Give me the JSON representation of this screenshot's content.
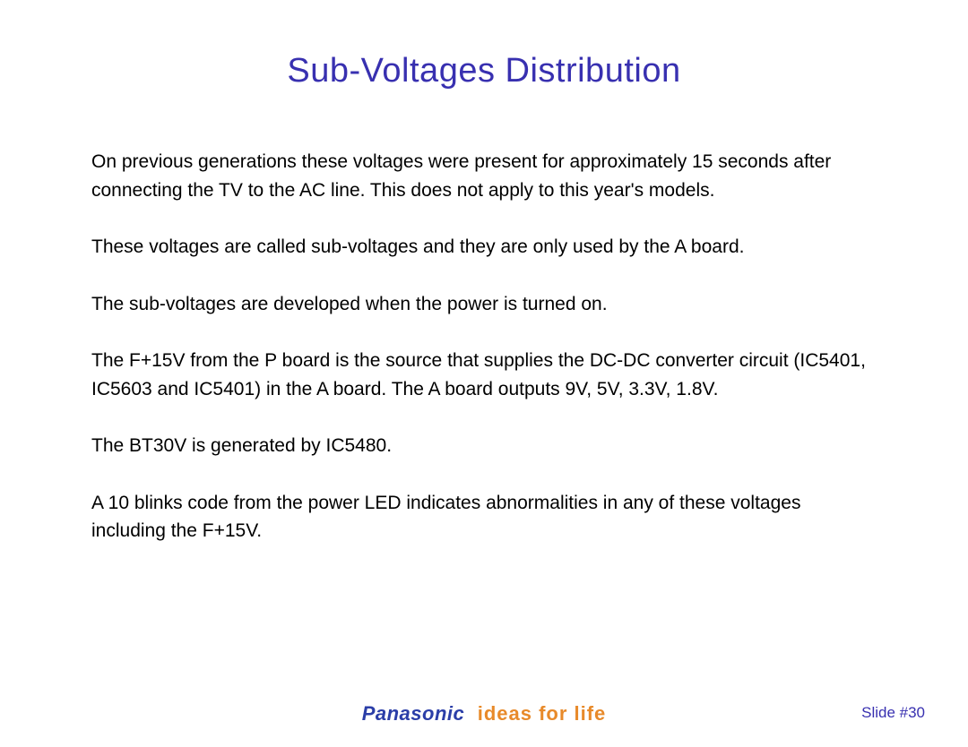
{
  "colors": {
    "title": "#3830b0",
    "body": "#000000",
    "brand_name": "#2b3ea8",
    "brand_tagline": "#e88a2a",
    "slide_number": "#3830b0",
    "background": "#ffffff"
  },
  "typography": {
    "title_fontsize": 38,
    "body_fontsize": 21,
    "brand_fontsize": 22,
    "slidenum_fontsize": 17
  },
  "title": "Sub-Voltages Distribution",
  "paragraphs": [
    "On previous generations these voltages were present for approximately 15 seconds after connecting the TV to the AC line. This does not apply to this year's models.",
    "These voltages are called sub-voltages and they are only used by the A board.",
    "The sub-voltages are developed when the power is turned on.",
    "The F+15V from the P board is the source that supplies the DC-DC converter circuit (IC5401, IC5603 and IC5401) in the A board. The A board outputs 9V, 5V, 3.3V, 1.8V.",
    "The BT30V is generated by IC5480.",
    "A 10 blinks code from the power LED indicates abnormalities in any of these voltages including the F+15V."
  ],
  "footer": {
    "brand_name": "Panasonic",
    "brand_tagline": "ideas for life",
    "slide_label": "Slide #30"
  }
}
